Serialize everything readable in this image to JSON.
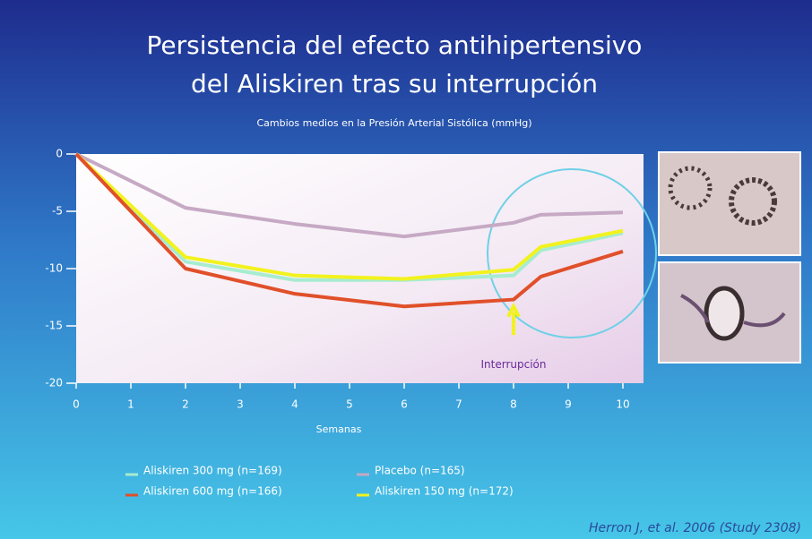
{
  "chart_data": {
    "type": "line",
    "title": [
      "Persistencia del efecto antihipertensivo",
      "del Aliskiren tras su interrupción"
    ],
    "subtitle": "Cambios medios en la Presión Arterial Sistólica (mmHg)",
    "x_label": "Semanas",
    "x": [
      0,
      2,
      4,
      6,
      8,
      8.5,
      10
    ],
    "xlim": [
      0,
      10
    ],
    "xticks": [
      0,
      1,
      2,
      3,
      4,
      5,
      6,
      7,
      8,
      9,
      10
    ],
    "ylim": [
      -20,
      0
    ],
    "yticks": [
      0,
      -5,
      -10,
      -15,
      -20
    ],
    "series": [
      {
        "name": "Aliskiren 300 mg (n=169)",
        "color": "#a6ecd0",
        "values": [
          0,
          -9.4,
          -11.0,
          -11.0,
          -10.6,
          -8.4,
          -6.9
        ]
      },
      {
        "name": "Placebo (n=165)",
        "color": "#c6a9c4",
        "values": [
          0,
          -4.7,
          -6.1,
          -7.2,
          -6.0,
          -5.3,
          -5.1
        ]
      },
      {
        "name": "Aliskiren 600 mg (n=166)",
        "color": "#e0502a",
        "values": [
          0,
          -10.0,
          -12.2,
          -13.3,
          -12.7,
          -10.7,
          -8.5
        ]
      },
      {
        "name": "Aliskiren 150 mg (n=172)",
        "color": "#f2f21e",
        "values": [
          0,
          -9.0,
          -10.6,
          -10.9,
          -10.1,
          -8.1,
          -6.7
        ]
      }
    ],
    "annotation": {
      "text": "Interrupción",
      "x": 8
    },
    "citation": "Herron J, et al. 2006 (Study 2308)"
  }
}
